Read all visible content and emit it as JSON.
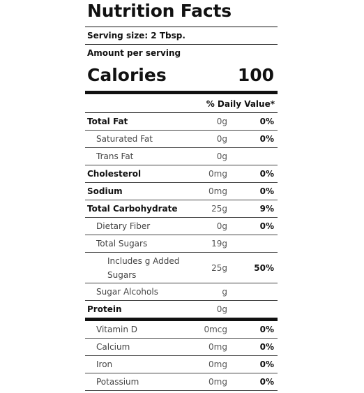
{
  "label": {
    "title": "Nutrition Facts",
    "serving_size": "Serving size: 2 Tbsp.",
    "amount_per_serving": "Amount per serving",
    "calories_label": "Calories",
    "calories_value": "100",
    "daily_value_header": "% Daily Value*"
  },
  "nutrients": [
    {
      "name": "Total Fat",
      "amount": "0g",
      "dv": "0%"
    },
    {
      "name": "Saturated Fat",
      "amount": "0g",
      "dv": "0%"
    },
    {
      "name": "Trans Fat",
      "amount": "0g",
      "dv": ""
    },
    {
      "name": "Cholesterol",
      "amount": "0mg",
      "dv": "0%"
    },
    {
      "name": "Sodium",
      "amount": "0mg",
      "dv": "0%"
    },
    {
      "name": "Total Carbohydrate",
      "amount": "25g",
      "dv": "9%"
    },
    {
      "name": "Dietary Fiber",
      "amount": "0g",
      "dv": "0%"
    },
    {
      "name": "Total Sugars",
      "amount": "19g",
      "dv": ""
    },
    {
      "name": "Includes g Added Sugars",
      "amount": "25g",
      "dv": "50%"
    },
    {
      "name": "Sugar Alcohols",
      "amount": "g",
      "dv": ""
    },
    {
      "name": "Protein",
      "amount": "0g",
      "dv": ""
    }
  ],
  "vitamins": [
    {
      "name": "Vitamin D",
      "amount": "0mcg",
      "dv": "0%"
    },
    {
      "name": "Calcium",
      "amount": "0mg",
      "dv": "0%"
    },
    {
      "name": "Iron",
      "amount": "0mg",
      "dv": "0%"
    },
    {
      "name": "Potassium",
      "amount": "0mg",
      "dv": "0%"
    }
  ]
}
